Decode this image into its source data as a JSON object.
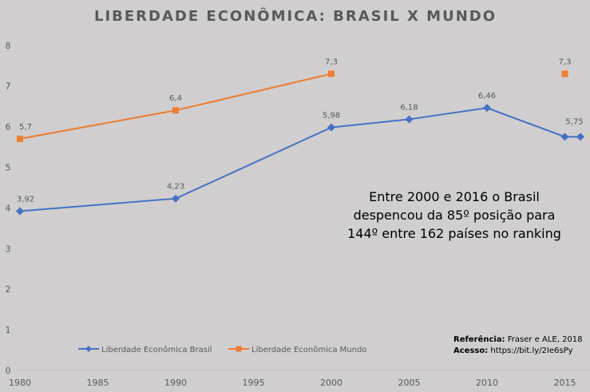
{
  "chart_data": {
    "type": "line",
    "title": "LIBERDADE ECONÔMICA: BRASIL X MUNDO",
    "xlabel": "",
    "ylabel": "",
    "xlim": [
      1980,
      2016
    ],
    "ylim": [
      0,
      8
    ],
    "x_ticks": [
      1980,
      1985,
      1990,
      1995,
      2000,
      2005,
      2010,
      2015
    ],
    "y_ticks": [
      0,
      1,
      2,
      3,
      4,
      5,
      6,
      7,
      8
    ],
    "grid": false,
    "legend_position": "bottom-left",
    "series": [
      {
        "name": "Liberdade Econômica Brasil",
        "color": "#4472c4",
        "marker": "diamond",
        "points": [
          [
            1980,
            3.92
          ],
          [
            1990,
            4.23
          ],
          [
            2000,
            5.98
          ],
          [
            2005,
            6.18
          ],
          [
            2010,
            6.46
          ],
          [
            2015,
            5.75
          ],
          [
            2016,
            5.75
          ]
        ],
        "labels": [
          "3,92",
          "4,23",
          "5,98",
          "6,18",
          "6,46",
          "5,75",
          ""
        ]
      },
      {
        "name": "Liberdade Econômica Mundo",
        "color": "#ed7d31",
        "marker": "square",
        "segments": [
          [
            [
              1980,
              5.7
            ],
            [
              1990,
              6.4
            ],
            [
              2000,
              7.3
            ]
          ],
          [
            [
              2015,
              7.3
            ]
          ]
        ],
        "labels": [
          [
            "5,7",
            "6,4",
            "7,3"
          ],
          [
            "7,3"
          ]
        ]
      }
    ],
    "annotation": [
      "Entre 2000 e 2016 o Brasil",
      "despencou da 85º posição para",
      "144º entre 162 países no ranking"
    ],
    "reference": {
      "label1": "Referência:",
      "text1": " Fraser e ALE, 2018",
      "label2": "Acesso:",
      "text2": " https://bit.ly/2Ie6sPy"
    }
  }
}
